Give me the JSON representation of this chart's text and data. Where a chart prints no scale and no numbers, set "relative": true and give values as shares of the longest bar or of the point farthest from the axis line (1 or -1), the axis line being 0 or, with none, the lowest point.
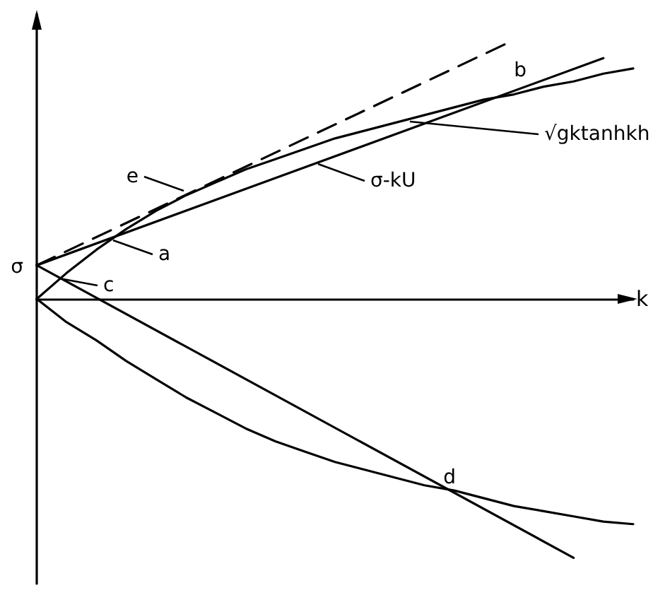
{
  "chart_data": {
    "type": "line",
    "relative": true,
    "xlabel": "k",
    "grid": false,
    "legend": "right",
    "marker": "none",
    "categories": [
      null,
      null,
      null,
      null,
      null,
      null,
      null,
      null,
      null,
      null,
      null,
      null,
      null,
      null,
      null,
      null,
      null,
      null,
      null,
      null,
      null
    ],
    "series": [
      {
        "name": "√gktanhkh",
        "color": "#000000",
        "values": [
          0,
          0.1,
          0.19,
          0.27,
          0.34,
          0.4,
          0.45,
          0.5,
          0.54,
          0.58,
          0.62,
          0.65,
          0.68,
          0.71,
          0.74,
          0.77,
          0.79,
          0.82,
          0.84,
          0.87,
          0.89
        ]
      },
      {
        "name": "σ-kU",
        "color": "#000000",
        "values": [
          0.13,
          null,
          null,
          null,
          null,
          null,
          null,
          null,
          null,
          null,
          null,
          null,
          null,
          null,
          null,
          null,
          null,
          null,
          null,
          0.93,
          null
        ]
      },
      {
        "color": "#000000",
        "line_style": "dashed",
        "values": [
          0.13,
          null,
          null,
          null,
          null,
          null,
          null,
          null,
          null,
          null,
          null,
          null,
          null,
          null,
          null,
          null,
          1.0,
          null,
          null,
          null,
          null
        ]
      },
      {
        "color": "#000000",
        "values": [
          0.13,
          null,
          null,
          null,
          null,
          null,
          null,
          null,
          null,
          null,
          null,
          null,
          null,
          null,
          null,
          null,
          null,
          null,
          -1.0,
          null,
          null
        ]
      },
      {
        "color": "#000000",
        "values": [
          0,
          -0.09,
          -0.16,
          -0.24,
          -0.31,
          -0.38,
          -0.44,
          -0.5,
          -0.55,
          -0.59,
          -0.63,
          -0.66,
          -0.69,
          -0.72,
          -0.74,
          -0.77,
          -0.8,
          -0.82,
          -0.84,
          -0.86,
          -0.87
        ]
      }
    ],
    "annotations": [
      "σ",
      "a",
      "b",
      "c",
      "d",
      "e"
    ]
  }
}
